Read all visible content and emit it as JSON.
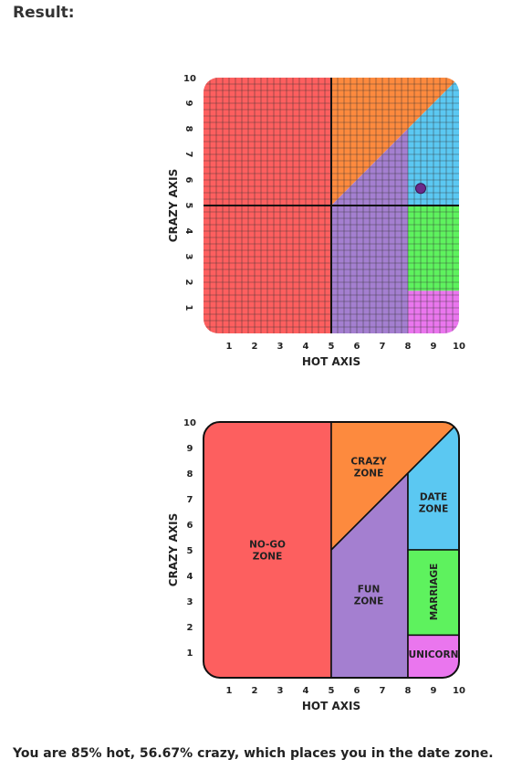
{
  "heading": "Result:",
  "result_text": "You are 85% hot, 56.67% crazy, which places you in the date zone.",
  "chart_data": [
    {
      "type": "scatter",
      "xlabel": "HOT AXIS",
      "ylabel": "CRAZY AXIS",
      "xlim": [
        0,
        10
      ],
      "ylim": [
        0,
        10
      ],
      "xticks": [
        "1",
        "2",
        "3",
        "4",
        "5",
        "6",
        "7",
        "8",
        "9",
        "10"
      ],
      "yticks": [
        "1",
        "2",
        "3",
        "4",
        "5",
        "6",
        "7",
        "8",
        "9",
        "10"
      ],
      "grid": true,
      "point": {
        "x": 8.5,
        "y": 5.67
      },
      "colors": {
        "red": "#fd5f5f",
        "orange": "#fd8a3e",
        "purple": "#a47fd0",
        "blue": "#5bc8f2",
        "green": "#5ef25e",
        "pink": "#ea76ee",
        "point": "#6b2a8a"
      }
    },
    {
      "type": "area",
      "xlabel": "HOT AXIS",
      "ylabel": "CRAZY AXIS",
      "xlim": [
        0,
        10
      ],
      "ylim": [
        0,
        10
      ],
      "xticks": [
        "1",
        "2",
        "3",
        "4",
        "5",
        "6",
        "7",
        "8",
        "9",
        "10"
      ],
      "yticks": [
        "1",
        "2",
        "3",
        "4",
        "5",
        "6",
        "7",
        "8",
        "9",
        "10"
      ],
      "grid": false,
      "zones": [
        {
          "id": "nogo",
          "lines": [
            "NO-GO",
            "ZONE"
          ],
          "color": "#fd5f5f"
        },
        {
          "id": "crazy",
          "lines": [
            "CRAZY",
            "ZONE"
          ],
          "color": "#fd8a3e"
        },
        {
          "id": "fun",
          "lines": [
            "FUN",
            "ZONE"
          ],
          "color": "#a47fd0"
        },
        {
          "id": "date",
          "lines": [
            "DATE",
            "ZONE"
          ],
          "color": "#5bc8f2"
        },
        {
          "id": "marriage",
          "lines": [
            "MARRIAGE"
          ],
          "color": "#5ef25e"
        },
        {
          "id": "unicorn",
          "lines": [
            "UNICORN"
          ],
          "color": "#ea76ee"
        }
      ]
    }
  ]
}
